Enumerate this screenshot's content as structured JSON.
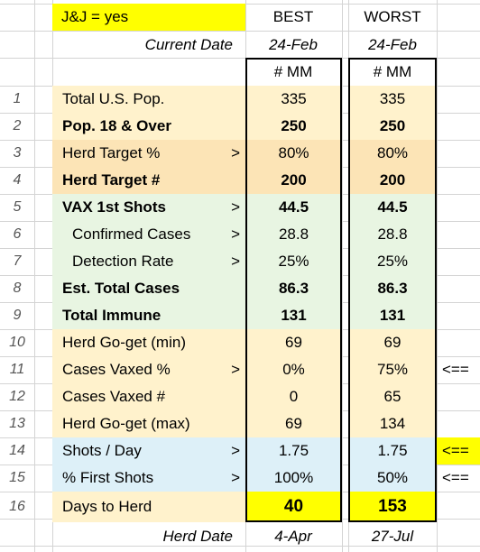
{
  "title_cell": "J&J = yes",
  "col_best": "BEST",
  "col_worst": "WORST",
  "current_date_label": "Current Date",
  "current_date_best": "24-Feb",
  "current_date_worst": "24-Feb",
  "unit_best": "# MM",
  "unit_worst": "# MM",
  "rows": [
    {
      "n": "1",
      "label": "Total U.S. Pop.",
      "arrow": "",
      "best": "335",
      "worst": "335",
      "bold": false,
      "indent": false,
      "color": "#fff2cc",
      "note": ""
    },
    {
      "n": "2",
      "label": "Pop.  18 & Over",
      "arrow": "",
      "best": "250",
      "worst": "250",
      "bold": true,
      "indent": false,
      "color": "#fff2cc",
      "note": ""
    },
    {
      "n": "3",
      "label": "Herd Target %",
      "arrow": ">",
      "best": "80%",
      "worst": "80%",
      "bold": false,
      "indent": false,
      "color": "#fce4b6",
      "note": ""
    },
    {
      "n": "4",
      "label": "Herd Target #",
      "arrow": "",
      "best": "200",
      "worst": "200",
      "bold": true,
      "indent": false,
      "color": "#fce4b6",
      "note": ""
    },
    {
      "n": "5",
      "label": "VAX 1st Shots",
      "arrow": ">",
      "best": "44.5",
      "worst": "44.5",
      "bold": true,
      "indent": false,
      "color": "#e8f5e2",
      "note": ""
    },
    {
      "n": "6",
      "label": "Confirmed Cases",
      "arrow": ">",
      "best": "28.8",
      "worst": "28.8",
      "bold": false,
      "indent": true,
      "color": "#e8f5e2",
      "note": ""
    },
    {
      "n": "7",
      "label": "Detection Rate",
      "arrow": ">",
      "best": "25%",
      "worst": "25%",
      "bold": false,
      "indent": true,
      "color": "#e8f5e2",
      "note": ""
    },
    {
      "n": "8",
      "label": "Est. Total Cases",
      "arrow": "",
      "best": "86.3",
      "worst": "86.3",
      "bold": true,
      "indent": false,
      "color": "#e8f5e2",
      "note": ""
    },
    {
      "n": "9",
      "label": "Total Immune",
      "arrow": "",
      "best": "131",
      "worst": "131",
      "bold": true,
      "indent": false,
      "color": "#e8f5e2",
      "note": ""
    },
    {
      "n": "10",
      "label": "Herd Go-get (min)",
      "arrow": "",
      "best": "69",
      "worst": "69",
      "bold": false,
      "indent": false,
      "color": "#fff2cc",
      "note": ""
    },
    {
      "n": "11",
      "label": "Cases Vaxed %",
      "arrow": ">",
      "best": "0%",
      "worst": "75%",
      "bold": false,
      "indent": false,
      "color": "#fff2cc",
      "note": "<=="
    },
    {
      "n": "12",
      "label": "Cases Vaxed #",
      "arrow": "",
      "best": "0",
      "worst": "65",
      "bold": false,
      "indent": false,
      "color": "#fff2cc",
      "note": ""
    },
    {
      "n": "13",
      "label": "Herd Go-get (max)",
      "arrow": "",
      "best": "69",
      "worst": "134",
      "bold": false,
      "indent": false,
      "color": "#fff2cc",
      "note": ""
    },
    {
      "n": "14",
      "label": "Shots / Day",
      "arrow": ">",
      "best": "1.75",
      "worst": "1.75",
      "bold": false,
      "indent": false,
      "color": "#ddf0f8",
      "note": "<=="
    },
    {
      "n": "15",
      "label": "% First Shots",
      "arrow": ">",
      "best": "100%",
      "worst": "50%",
      "bold": false,
      "indent": false,
      "color": "#ddf0f8",
      "note": "<=="
    },
    {
      "n": "16",
      "label": "Days to Herd",
      "arrow": "",
      "best": "40",
      "worst": "153",
      "bold": false,
      "indent": false,
      "color": "#fff2cc",
      "note": ""
    }
  ],
  "herd_date_label": "Herd Date",
  "herd_date_best": "4-Apr",
  "herd_date_worst": "27-Jul",
  "colors": {
    "title_yellow": "#ffff00",
    "days_yellow": "#ffff00",
    "grid": "#d4d4d4"
  }
}
